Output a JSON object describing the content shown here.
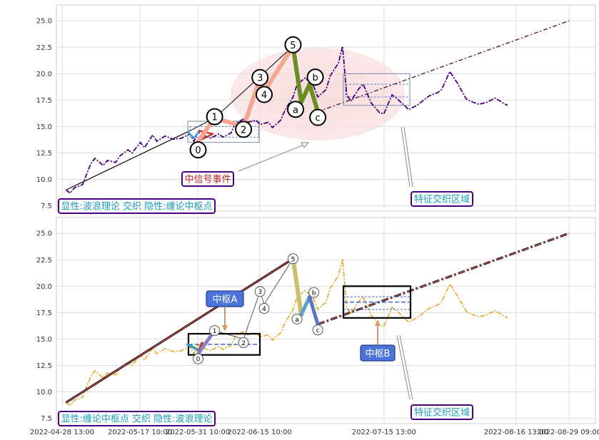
{
  "chart_data": [
    {
      "type": "line",
      "title": "",
      "xlabel": "",
      "ylabel": "",
      "ylim": [
        7.0,
        26.5
      ],
      "yticks": [
        "25.0",
        "22.5",
        "20.0",
        "17.5",
        "15.0",
        "12.5",
        "10.0",
        "7.5"
      ],
      "grid": true,
      "series": [
        {
          "x": [
            "2022-04-29",
            "2022-04-30",
            "2022-05-01",
            "2022-05-03",
            "2022-05-05",
            "2022-05-06",
            "2022-05-08",
            "2022-05-09",
            "2022-05-11",
            "2022-05-12",
            "2022-05-14",
            "2022-05-15",
            "2022-05-17",
            "2022-05-18",
            "2022-05-20",
            "2022-05-21",
            "2022-05-23",
            "2022-05-25",
            "2022-05-27",
            "2022-05-29",
            "2022-05-30",
            "2022-05-31",
            "2022-06-01",
            "2022-06-03",
            "2022-06-05",
            "2022-06-06",
            "2022-06-08",
            "2022-06-09",
            "2022-06-11",
            "2022-06-12",
            "2022-06-14",
            "2022-06-15",
            "2022-06-17",
            "2022-06-18",
            "2022-06-20",
            "2022-06-21",
            "2022-06-23",
            "2022-06-24",
            "2022-06-26",
            "2022-06-28",
            "2022-06-29",
            "2022-07-01",
            "2022-07-02",
            "2022-07-04",
            "2022-07-05",
            "2022-07-06",
            "2022-07-07",
            "2022-07-09",
            "2022-07-10",
            "2022-07-12",
            "2022-07-14",
            "2022-07-15",
            "2022-07-17",
            "2022-07-18",
            "2022-07-20",
            "2022-07-21",
            "2022-07-23",
            "2022-07-25",
            "2022-07-26",
            "2022-07-28",
            "2022-07-29",
            "2022-07-31",
            "2022-08-02",
            "2022-08-04",
            "2022-08-05",
            "2022-08-07",
            "2022-08-09",
            "2022-08-11",
            "2022-08-13",
            "2022-08-14"
          ],
          "values": [
            9.0,
            8.7,
            9.2,
            9.5,
            11.5,
            12.0,
            11.3,
            11.8,
            11.6,
            12.2,
            12.8,
            12.5,
            13.5,
            13.0,
            14.2,
            13.6,
            14.1,
            13.8,
            13.9,
            14.3,
            13.6,
            14.5,
            14.2,
            13.9,
            14.3,
            14.0,
            14.4,
            15.3,
            15.7,
            15.4,
            15.6,
            15.2,
            15.4,
            14.9,
            15.6,
            16.5,
            17.8,
            19.0,
            19.6,
            18.8,
            17.8,
            18.5,
            19.8,
            21.0,
            22.6,
            18.0,
            17.4,
            18.6,
            19.0,
            17.2,
            16.3,
            16.2,
            18.0,
            17.7,
            17.0,
            16.6,
            17.0,
            17.6,
            17.9,
            18.2,
            18.5,
            20.2,
            19.0,
            17.6,
            17.4,
            17.1,
            17.3,
            17.7,
            17.2,
            17.0
          ]
        }
      ],
      "wave_points": [
        {
          "label": "0",
          "x": "2022-05-31",
          "y": 13.6
        },
        {
          "label": "1",
          "x": "2022-06-04",
          "y": 15.8
        },
        {
          "label": "2",
          "x": "2022-06-11",
          "y": 15.0
        },
        {
          "label": "3",
          "x": "2022-06-15",
          "y": 19.5
        },
        {
          "label": "4",
          "x": "2022-06-16",
          "y": 18.3
        },
        {
          "label": "5",
          "x": "2022-06-23",
          "y": 22.6
        },
        {
          "label": "a",
          "x": "2022-06-25",
          "y": 17.3
        },
        {
          "label": "b",
          "x": "2022-06-27",
          "y": 19.0
        },
        {
          "label": "c",
          "x": "2022-06-29",
          "y": 16.4
        }
      ],
      "annotations": [
        {
          "text": "中信号事件"
        },
        {
          "text": "特征交织区域"
        }
      ],
      "legend_text": "显性:波浪理论 交织 隐性:缠论中枢点"
    },
    {
      "type": "line",
      "title": "",
      "xlabel": "",
      "ylabel": "",
      "ylim": [
        7.0,
        26.5
      ],
      "yticks": [
        "25.0",
        "22.5",
        "20.0",
        "17.5",
        "15.0",
        "12.5",
        "10.0",
        "7.5"
      ],
      "xticks": [
        "2022-04-28 13:00",
        "2022-05-17 10:00",
        "2022-05-31 10:00",
        "2022-06-15 10:00",
        "2022-07-15 13:00",
        "2022-08-16 13:00",
        "2022-08-29 09:00"
      ],
      "grid": true,
      "wave_points": [
        {
          "label": "0",
          "x": "2022-05-31",
          "y": 13.6
        },
        {
          "label": "1",
          "x": "2022-06-04",
          "y": 15.8
        },
        {
          "label": "2",
          "x": "2022-06-11",
          "y": 15.0
        },
        {
          "label": "3",
          "x": "2022-06-15",
          "y": 19.5
        },
        {
          "label": "4",
          "x": "2022-06-16",
          "y": 18.3
        },
        {
          "label": "5",
          "x": "2022-06-23",
          "y": 22.6
        },
        {
          "label": "a",
          "x": "2022-06-25",
          "y": 17.3
        },
        {
          "label": "b",
          "x": "2022-06-27",
          "y": 19.0
        },
        {
          "label": "c",
          "x": "2022-06-29",
          "y": 16.4
        }
      ],
      "centers": [
        {
          "label": "中枢A",
          "y_low": 13.5,
          "y_high": 15.5,
          "y_mid": 14.5
        },
        {
          "label": "中枢B",
          "y_low": 17.0,
          "y_high": 20.0,
          "y_mid": 18.5
        }
      ],
      "annotations": [
        {
          "text": "特征交织区域"
        }
      ],
      "legend_text": "显性:缠论中枢点 交织 隐性:波浪理论"
    }
  ],
  "colors": {
    "price_top": "#4b0082",
    "price_bottom": "#e8a317",
    "trend": "#000000",
    "accent_red": "#b22222",
    "cyan": "#1a9bb8",
    "blue_box": "#3a6bd1"
  }
}
